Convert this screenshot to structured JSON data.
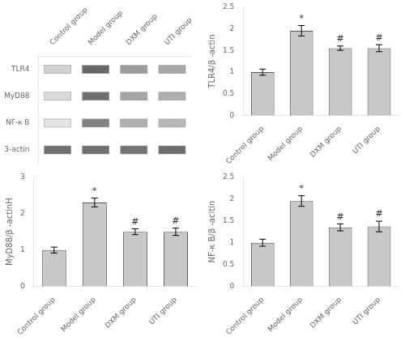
{
  "chart_data": [
    {
      "type": "heatmap",
      "categories": [
        "Control group",
        "Model group",
        "DXM group",
        "UTI group"
      ],
      "row_labels": [
        "TLR4",
        "MyD88",
        "NF-κ B",
        "3-actin"
      ],
      "values": [
        [
          0.25,
          0.85,
          0.55,
          0.5
        ],
        [
          0.2,
          0.8,
          0.5,
          0.45
        ],
        [
          0.15,
          0.7,
          0.45,
          0.4
        ],
        [
          0.8,
          0.8,
          0.78,
          0.82
        ]
      ]
    },
    {
      "type": "bar",
      "categories": [
        "Control group",
        "Model group",
        "DXM group",
        "UTI group"
      ],
      "values": [
        1.0,
        1.95,
        1.55,
        1.55
      ],
      "errors": [
        0.07,
        0.12,
        0.05,
        0.08
      ],
      "annotations": [
        null,
        "*",
        "#",
        "#"
      ],
      "ylabel": "TLR4/β -actin",
      "ylim": [
        0,
        2.5
      ],
      "yticks": [
        0,
        0.5,
        1,
        1.5,
        2,
        2.5
      ],
      "color": "#c8c8c8",
      "grid": false
    },
    {
      "type": "bar",
      "categories": [
        "Control group",
        "Model group",
        "DXM group",
        "UTI group"
      ],
      "values": [
        1.0,
        2.3,
        1.5,
        1.5
      ],
      "errors": [
        0.08,
        0.12,
        0.08,
        0.1
      ],
      "annotations": [
        null,
        "*",
        "#",
        "#"
      ],
      "ylabel": "MyD88/β -actinH",
      "ylim": [
        0,
        3.0
      ],
      "yticks": [
        0,
        1,
        2,
        3
      ],
      "color": "#c8c8c8",
      "grid": false
    },
    {
      "type": "bar",
      "categories": [
        "Control group",
        "Model group",
        "DXM group",
        "UTI group"
      ],
      "values": [
        1.0,
        1.95,
        1.35,
        1.37
      ],
      "errors": [
        0.08,
        0.12,
        0.08,
        0.12
      ],
      "annotations": [
        null,
        "*",
        "#",
        "#"
      ],
      "ylabel": "NF-κ B/β -acitin",
      "ylim": [
        0,
        2.5
      ],
      "yticks": [
        0,
        0.5,
        1,
        1.5,
        2,
        2.5
      ],
      "color": "#c8c8c8",
      "grid": false
    }
  ]
}
